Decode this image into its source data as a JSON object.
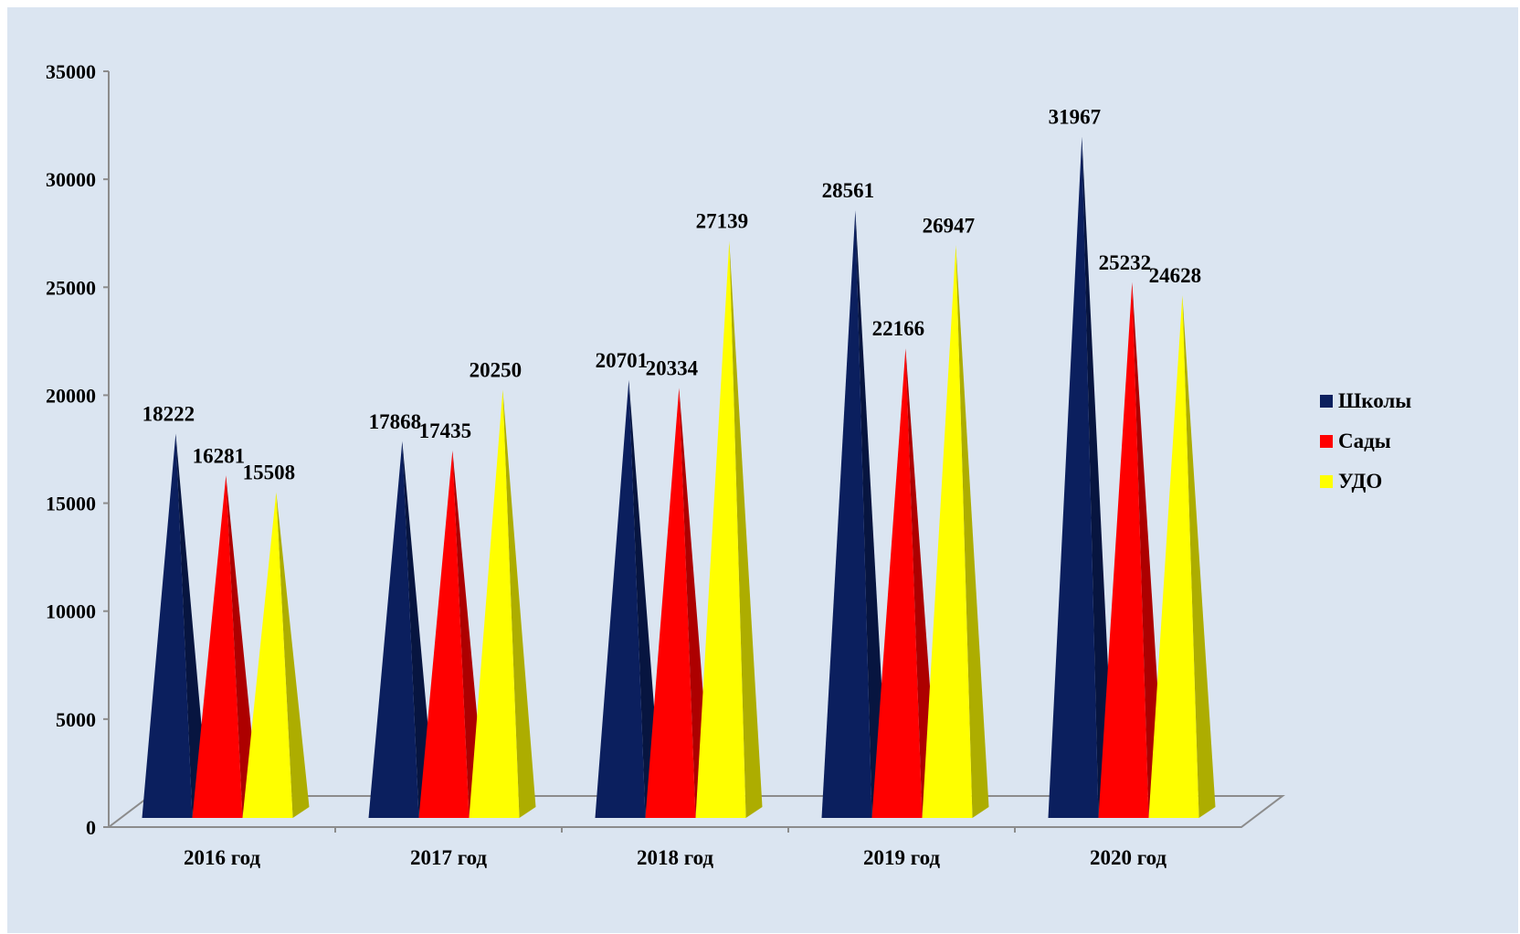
{
  "chart_data": {
    "type": "bar",
    "style": "3d-pyramid",
    "categories": [
      "2016 год",
      "2017 год",
      "2018 год",
      "2019 год",
      "2020 год"
    ],
    "series": [
      {
        "name": "Школы",
        "color": "#0b1f5e",
        "values": [
          18222,
          17868,
          20701,
          28561,
          31967
        ]
      },
      {
        "name": "Сады",
        "color": "#ff0000",
        "values": [
          16281,
          17435,
          20334,
          22166,
          25232
        ]
      },
      {
        "name": "УДО",
        "color": "#ffff00",
        "values": [
          15508,
          20250,
          27139,
          26947,
          24628
        ]
      }
    ],
    "ylim": [
      0,
      35000
    ],
    "yticks": [
      0,
      5000,
      10000,
      15000,
      20000,
      25000,
      30000,
      35000
    ],
    "grid": false,
    "legend_position": "right",
    "background": "#dbe5f1",
    "data_labels": true
  }
}
